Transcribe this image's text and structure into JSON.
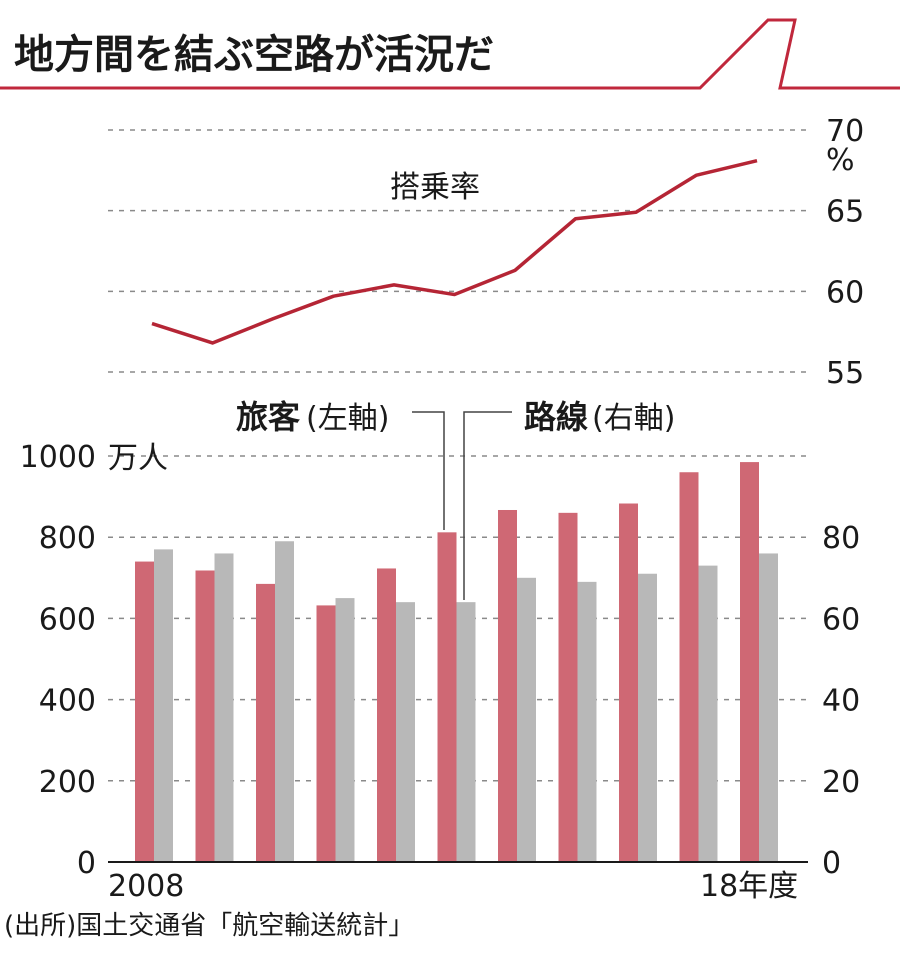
{
  "chart_data": {
    "title": "地方間を結ぶ空路が活況だ",
    "colors": {
      "accent": "#c0283c",
      "bar_passengers": "#cf6874",
      "bar_routes": "#b8b8b8",
      "line": "#b52535"
    },
    "x": {
      "first_label": "2008",
      "last_label": "18年度",
      "count": 11
    },
    "line": {
      "type": "line",
      "label": "搭乗率",
      "unit": "%",
      "ylim": [
        55,
        70
      ],
      "ticks": [
        "70",
        "65",
        "60",
        "55"
      ],
      "values": [
        58.0,
        56.8,
        58.3,
        59.7,
        60.4,
        59.8,
        61.3,
        64.5,
        64.9,
        67.2,
        68.1
      ]
    },
    "bars": {
      "type": "bar",
      "left_unit": "万人",
      "left_ylim": [
        0,
        1000
      ],
      "left_ticks": [
        "1000",
        "800",
        "600",
        "400",
        "200",
        "0"
      ],
      "right_ylim": [
        0,
        100
      ],
      "right_ticks": [
        "80",
        "60",
        "40",
        "20",
        "0"
      ],
      "series": [
        {
          "name": "旅客",
          "axis_note": "(左軸)",
          "axis": "left",
          "values": [
            740,
            718,
            685,
            632,
            723,
            812,
            867,
            860,
            883,
            960,
            985
          ]
        },
        {
          "name": "路線",
          "axis_note": "(右軸)",
          "axis": "right",
          "values": [
            77,
            76,
            79,
            65,
            64,
            64,
            70,
            69,
            71,
            73,
            76
          ]
        }
      ]
    },
    "source": "(出所)国土交通省「航空輸送統計」"
  }
}
